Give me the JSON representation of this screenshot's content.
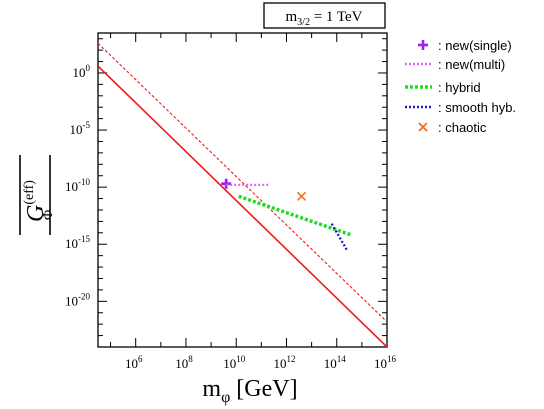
{
  "chart_data": {
    "type": "line",
    "title": "m3/2 = 1 TeV",
    "xlabel": "mφ [GeV]",
    "ylabel": "|G_Φ^(eff)|",
    "x_scale": "log",
    "y_scale": "log",
    "xlim_log10": [
      4.5,
      16
    ],
    "ylim_log10": [
      -24,
      3.5
    ],
    "x_tick_labels": [
      "10^6",
      "10^8",
      "10^10",
      "10^12",
      "10^14",
      "10^16"
    ],
    "y_tick_labels": [
      "10^0",
      "10^-5",
      "10^-10",
      "10^-15",
      "10^-20"
    ],
    "reference_lines": [
      {
        "style": "solid",
        "color": "#ee1c1c",
        "log10_x": [
          4.5,
          16
        ],
        "log10_y": [
          0.6,
          -24.0
        ]
      },
      {
        "style": "dashed",
        "color": "#ee1c1c",
        "log10_x": [
          4.5,
          16
        ],
        "log10_y": [
          2.6,
          -21.8
        ]
      }
    ],
    "series": [
      {
        "name": "new(single)",
        "marker": "plus",
        "color": "#a020f0",
        "points": [
          {
            "log10_x": 9.6,
            "log10_y": -9.7
          }
        ]
      },
      {
        "name": "new(multi)",
        "style": "dotted",
        "color": "#e066ff",
        "points": [
          {
            "log10_x": 9.6,
            "log10_y": -9.8
          },
          {
            "log10_x": 11.3,
            "log10_y": -9.8
          }
        ]
      },
      {
        "name": "hybrid",
        "style": "dotted",
        "color": "#22dd22",
        "points": [
          {
            "log10_x": 10.1,
            "log10_y": -10.8
          },
          {
            "log10_x": 14.6,
            "log10_y": -14.2
          }
        ]
      },
      {
        "name": "smooth hyb.",
        "style": "dotted",
        "color": "#1a1acc",
        "points": [
          {
            "log10_x": 13.8,
            "log10_y": -13.2
          },
          {
            "log10_x": 14.4,
            "log10_y": -15.5
          }
        ]
      },
      {
        "name": "chaotic",
        "marker": "x",
        "color": "#f07020",
        "points": [
          {
            "log10_x": 12.6,
            "log10_y": -10.8
          }
        ]
      }
    ]
  },
  "legend_entries": [
    ": new(single)",
    ": new(multi)",
    ": hybrid",
    ": smooth hyb.",
    ": chaotic"
  ],
  "text": {
    "title_main": "m",
    "title_sub": "3/2",
    "title_rest": " = 1 TeV",
    "x_main": "m",
    "x_sub": "φ",
    "x_rest": " [GeV]",
    "y_main": "G",
    "y_sub": "Φ",
    "y_sup": "(eff)"
  }
}
